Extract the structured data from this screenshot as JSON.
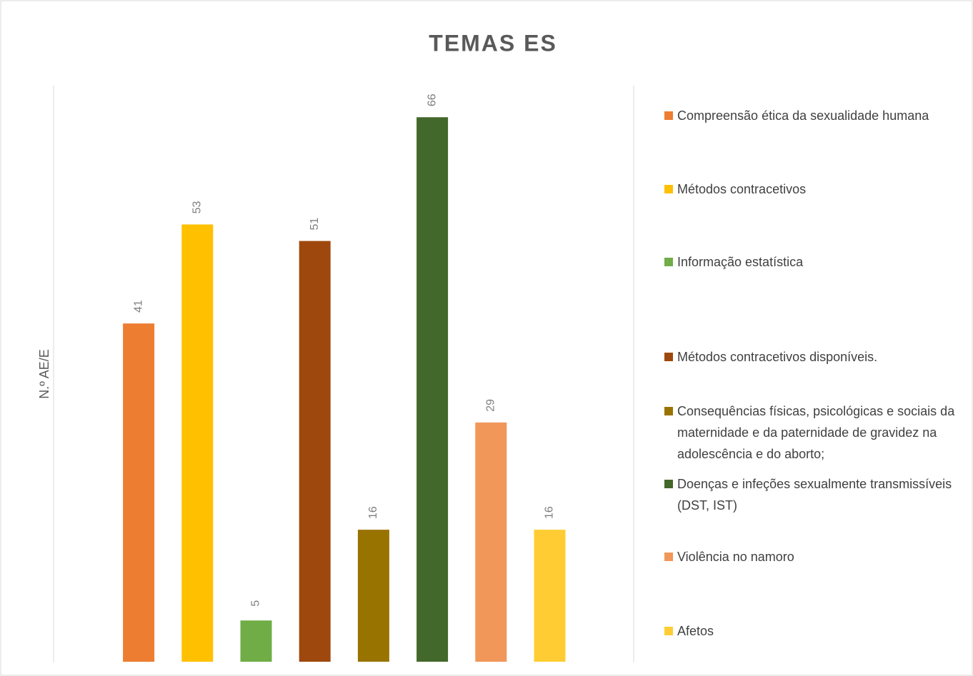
{
  "chart_data": {
    "type": "bar",
    "title": "TEMAS ES",
    "y_label": "N.º AE/E",
    "categories": [
      "Compreensão ética da sexualidade humana",
      "Métodos contracetivos",
      "Informação estatística",
      "Métodos contracetivos disponíveis.",
      "Consequências físicas, psicológicas e sociais da maternidade e da paternidade de gravidez na adolescência e do aborto;",
      "Doenças e infeções sexualmente transmissíveis (DST, IST)",
      "Violência no namoro",
      "Afetos"
    ],
    "values": [
      41,
      53,
      5,
      51,
      16,
      66,
      29,
      16
    ],
    "colors": [
      "#ed7d31",
      "#ffc000",
      "#70ad47",
      "#9e480e",
      "#997300",
      "#43682b",
      "#f1975a",
      "#ffcd33"
    ],
    "ylim": [
      0,
      70
    ],
    "legend": "right"
  }
}
